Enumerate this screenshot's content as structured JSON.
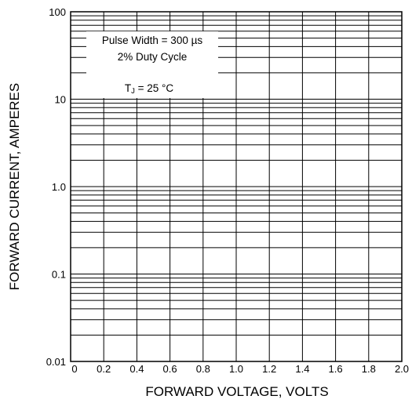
{
  "chart_data": {
    "type": "line",
    "title": "",
    "xlabel": "FORWARD VOLTAGE, VOLTS",
    "ylabel": "FORWARD CURRENT, AMPERES",
    "x_scale": "linear",
    "y_scale": "log",
    "xlim": [
      0,
      2.0
    ],
    "ylim": [
      0.01,
      100
    ],
    "x_ticks": [
      0,
      0.2,
      0.4,
      0.6,
      0.8,
      1.0,
      1.2,
      1.4,
      1.6,
      1.8,
      2.0
    ],
    "x_tick_labels": [
      "0",
      "0.2",
      "0.4",
      "0.6",
      "0.8",
      "1.0",
      "1.2",
      "1.4",
      "1.6",
      "1.8",
      "2.0"
    ],
    "y_ticks": [
      0.01,
      0.1,
      1,
      10,
      100
    ],
    "y_tick_labels": [
      "0.01",
      "0.1",
      "1.0",
      "10",
      "100"
    ],
    "grid": true,
    "series": [],
    "annotation": {
      "line1": "Pulse Width = 300 µs",
      "line2": "2% Duty Cycle",
      "line3_prefix": "T",
      "line3_sub": "J",
      "line3_suffix": " = 25 °C"
    }
  }
}
